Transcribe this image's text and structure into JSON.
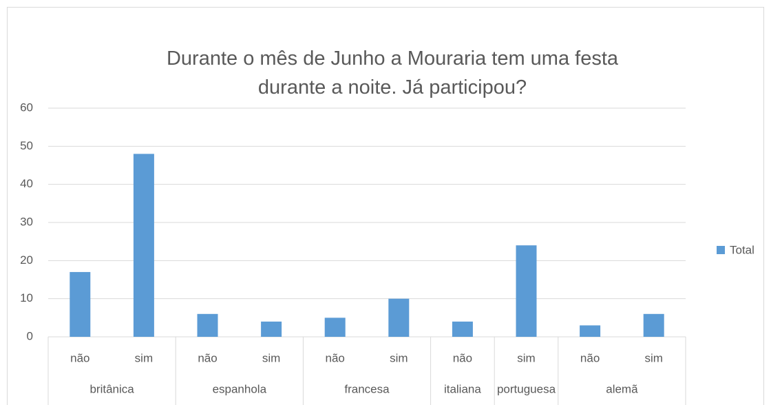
{
  "chart_data": {
    "type": "bar",
    "title": "Durante o mês de Junho a Mouraria tem uma festa durante a noite. Já participou?",
    "groups": [
      {
        "name": "britânica",
        "categories": [
          "não",
          "sim"
        ]
      },
      {
        "name": "espanhola",
        "categories": [
          "não",
          "sim"
        ]
      },
      {
        "name": "francesa",
        "categories": [
          "não",
          "sim"
        ]
      },
      {
        "name": "italiana",
        "categories": [
          "não"
        ]
      },
      {
        "name": "portuguesa",
        "categories": [
          "sim"
        ]
      },
      {
        "name": "alemã",
        "categories": [
          "não",
          "sim"
        ]
      }
    ],
    "series": [
      {
        "name": "Total",
        "color": "#5b9bd5",
        "values": [
          17,
          48,
          6,
          4,
          5,
          10,
          4,
          24,
          3,
          6
        ]
      }
    ],
    "ylim": [
      0,
      60
    ],
    "yticks": [
      0,
      10,
      20,
      30,
      40,
      50,
      60
    ],
    "grid": true,
    "legend": "right"
  }
}
